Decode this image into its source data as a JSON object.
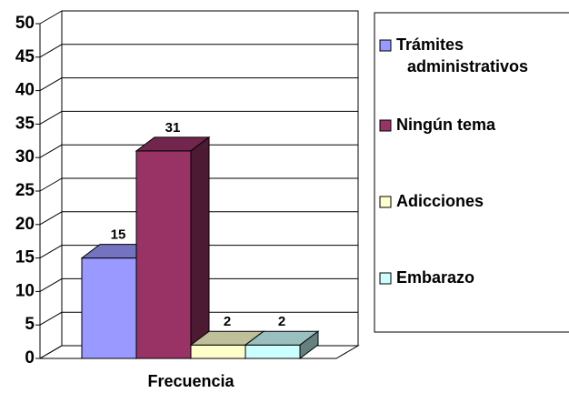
{
  "chart_data": {
    "type": "bar3d",
    "categories": [
      "Frecuencia"
    ],
    "series": [
      {
        "name": "Trámites administrativos",
        "color": "#9999ff",
        "values": [
          15
        ]
      },
      {
        "name": "Ningún tema",
        "color": "#993366",
        "values": [
          31
        ]
      },
      {
        "name": "Adicciones",
        "color": "#ffffcc",
        "values": [
          2
        ]
      },
      {
        "name": "Embarazo",
        "color": "#ccffff",
        "values": [
          2
        ]
      }
    ],
    "ylim": [
      0,
      50
    ],
    "yticks": [
      0,
      5,
      10,
      15,
      20,
      25,
      30,
      35,
      40,
      45,
      50
    ],
    "grid": true,
    "legend": "right"
  }
}
